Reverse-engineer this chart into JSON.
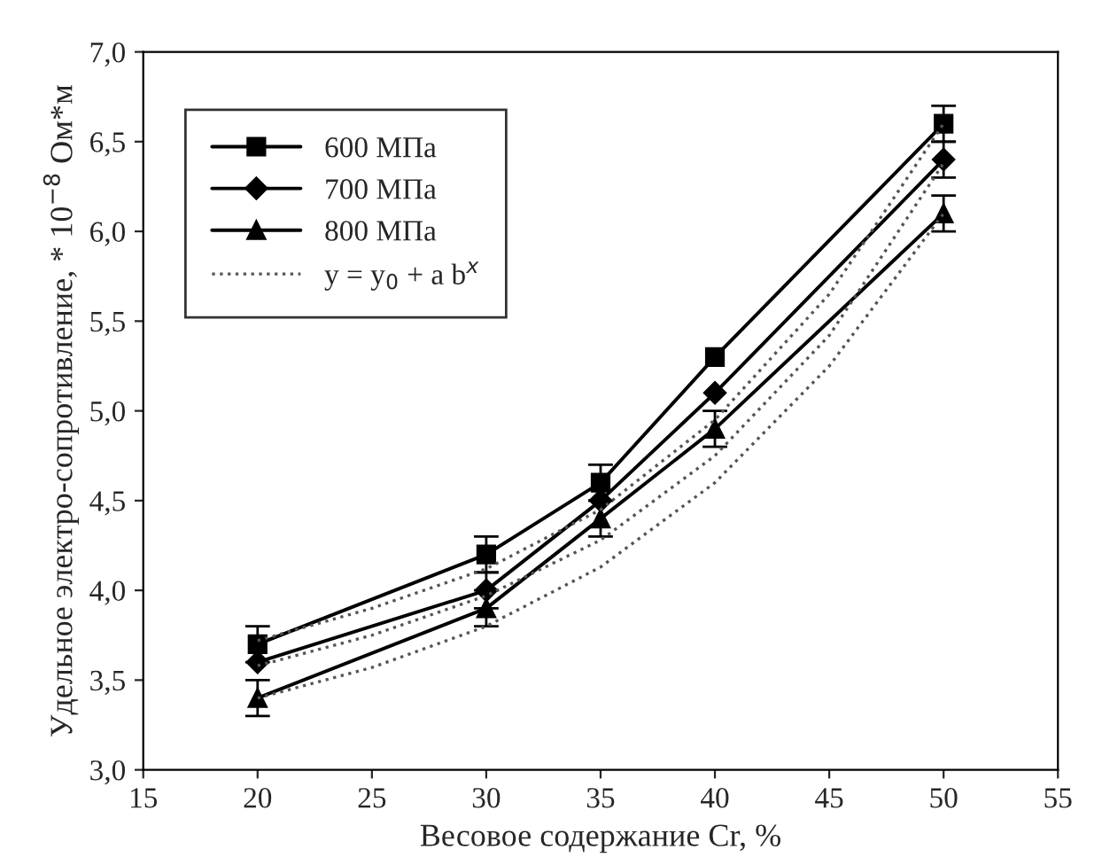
{
  "chart_data": {
    "type": "line",
    "xlabel": "Весовое содержание Cr, %",
    "ylabel": "Удельное электро-сопротивление, * 10$^{−8}$ Ом*м",
    "x": [
      20,
      30,
      35,
      40,
      50
    ],
    "series": [
      {
        "name": "600 МПа",
        "color": "#000000",
        "marker": "square",
        "values": [
          3.7,
          4.2,
          4.6,
          5.3,
          6.6
        ],
        "errors": [
          0.1,
          0.1,
          0.1,
          null,
          0.1
        ]
      },
      {
        "name": "700 МПа",
        "color": "#000000",
        "marker": "diamond",
        "values": [
          3.6,
          4.0,
          4.5,
          5.1,
          6.4
        ],
        "errors": [
          null,
          0.1,
          null,
          null,
          0.1
        ]
      },
      {
        "name": "800 МПа",
        "color": "#000000",
        "marker": "triangle",
        "values": [
          3.4,
          3.9,
          4.4,
          4.9,
          6.1
        ],
        "errors": [
          0.1,
          0.1,
          0.1,
          0.1,
          0.1
        ]
      },
      {
        "name": "y = y$_{0}$ + a b$^{x}$",
        "color": "#555555",
        "marker": "none",
        "line_style": "dotted",
        "x": [
          20,
          25,
          30,
          35,
          40,
          45,
          50
        ],
        "values": [
          3.72,
          3.9,
          4.12,
          4.45,
          4.95,
          5.65,
          6.6
        ]
      },
      {
        "color": "#555555",
        "marker": "none",
        "line_style": "dotted",
        "x": [
          20,
          25,
          30,
          35,
          40,
          45,
          50
        ],
        "values": [
          3.58,
          3.75,
          3.97,
          4.28,
          4.75,
          5.42,
          6.38
        ]
      },
      {
        "color": "#555555",
        "marker": "none",
        "line_style": "dotted",
        "x": [
          20,
          25,
          30,
          35,
          40,
          45,
          50
        ],
        "values": [
          3.4,
          3.57,
          3.8,
          4.13,
          4.6,
          5.25,
          6.1
        ]
      }
    ],
    "xlim": [
      15,
      55
    ],
    "xticks": [
      15,
      20,
      25,
      30,
      35,
      40,
      45,
      50,
      55
    ],
    "ylim": [
      3.0,
      7.0
    ],
    "yticks": [
      {
        "value": 3.0,
        "label": "3,0"
      },
      {
        "value": 3.5,
        "label": "3,5"
      },
      {
        "value": 4.0,
        "label": "4,0"
      },
      {
        "value": 4.5,
        "label": "4,5"
      },
      {
        "value": 5.0,
        "label": "5,0"
      },
      {
        "value": 5.5,
        "label": "5,5"
      },
      {
        "value": 6.0,
        "label": "6,0"
      },
      {
        "value": 6.5,
        "label": "6,5"
      },
      {
        "value": 7.0,
        "label": "7,0"
      }
    ],
    "grid": false,
    "legend": "top left"
  }
}
